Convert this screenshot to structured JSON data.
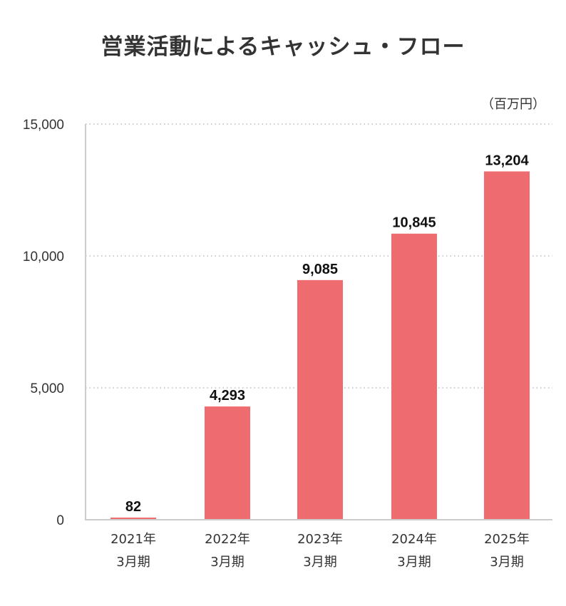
{
  "chart_data": {
    "type": "bar",
    "title": "営業活動によるキャッシュ・フロー",
    "unit": "（百万円）",
    "categories": [
      [
        "2021年",
        "3月期"
      ],
      [
        "2022年",
        "3月期"
      ],
      [
        "2023年",
        "3月期"
      ],
      [
        "2024年",
        "3月期"
      ],
      [
        "2025年",
        "3月期"
      ]
    ],
    "values": [
      82,
      4293,
      9085,
      10845,
      13204
    ],
    "value_labels": [
      "82",
      "4,293",
      "9,085",
      "10,845",
      "13,204"
    ],
    "yticks": [
      0,
      5000,
      10000,
      15000
    ],
    "ytick_labels": [
      "0",
      "5,000",
      "10,000",
      "15,000"
    ],
    "ylim": [
      0,
      15000
    ],
    "grid": true,
    "bar_color": "#ee6b70"
  }
}
